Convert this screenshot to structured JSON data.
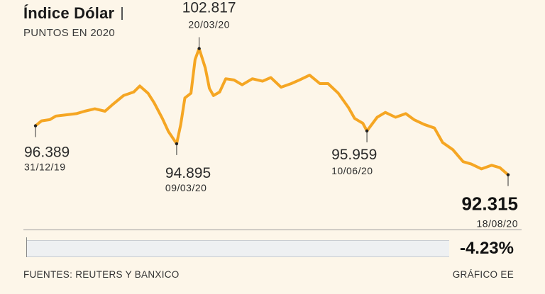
{
  "header": {
    "title": "Índice Dólar",
    "subtitle": "PUNTOS EN 2020"
  },
  "chart_data": {
    "type": "line",
    "line_color": "#f5a623",
    "annotations": [
      {
        "value": "96.389",
        "date": "31/12/19"
      },
      {
        "value": "94.895",
        "date": "09/03/20"
      },
      {
        "value": "102.817",
        "date": "20/03/20"
      },
      {
        "value": "95.959",
        "date": "10/06/20"
      },
      {
        "value": "92.315",
        "date": "18/08/20"
      }
    ],
    "series": [
      {
        "x": [
          "2019-12-31",
          "2020-01-03",
          "2020-01-07",
          "2020-01-10",
          "2020-01-15",
          "2020-01-20",
          "2020-01-24",
          "2020-01-29",
          "2020-02-03",
          "2020-02-07",
          "2020-02-12",
          "2020-02-17",
          "2020-02-20",
          "2020-02-24",
          "2020-02-27",
          "2020-03-02",
          "2020-03-05",
          "2020-03-09",
          "2020-03-11",
          "2020-03-13",
          "2020-03-16",
          "2020-03-18",
          "2020-03-20",
          "2020-03-23",
          "2020-03-25",
          "2020-03-27",
          "2020-03-30",
          "2020-04-02",
          "2020-04-06",
          "2020-04-10",
          "2020-04-15",
          "2020-04-20",
          "2020-04-24",
          "2020-04-29",
          "2020-05-04",
          "2020-05-08",
          "2020-05-13",
          "2020-05-18",
          "2020-05-22",
          "2020-05-27",
          "2020-06-01",
          "2020-06-04",
          "2020-06-08",
          "2020-06-10",
          "2020-06-15",
          "2020-06-19",
          "2020-06-24",
          "2020-06-29",
          "2020-07-03",
          "2020-07-08",
          "2020-07-13",
          "2020-07-17",
          "2020-07-22",
          "2020-07-27",
          "2020-07-31",
          "2020-08-05",
          "2020-08-10",
          "2020-08-14",
          "2020-08-18"
        ],
        "values": [
          96.389,
          96.8,
          96.9,
          97.2,
          97.3,
          97.4,
          97.6,
          97.8,
          97.6,
          98.2,
          98.9,
          99.2,
          99.7,
          99.1,
          98.3,
          97.0,
          95.9,
          94.895,
          96.5,
          98.7,
          99.1,
          101.9,
          102.817,
          101.2,
          99.5,
          98.9,
          99.2,
          100.3,
          100.2,
          99.8,
          100.3,
          100.1,
          100.4,
          99.6,
          99.9,
          100.2,
          100.6,
          99.9,
          99.9,
          99.1,
          97.9,
          97.0,
          96.6,
          95.959,
          97.1,
          97.5,
          97.1,
          97.4,
          96.9,
          96.5,
          96.2,
          95.0,
          94.4,
          93.4,
          93.2,
          92.8,
          93.1,
          92.9,
          92.315
        ]
      }
    ],
    "ylim": [
      92.0,
      103.2
    ]
  },
  "summary": {
    "change": "-4.23%"
  },
  "footer": {
    "source": "FUENTES: REUTERS Y BANXICO",
    "credit": "GRÁFICO EE"
  }
}
